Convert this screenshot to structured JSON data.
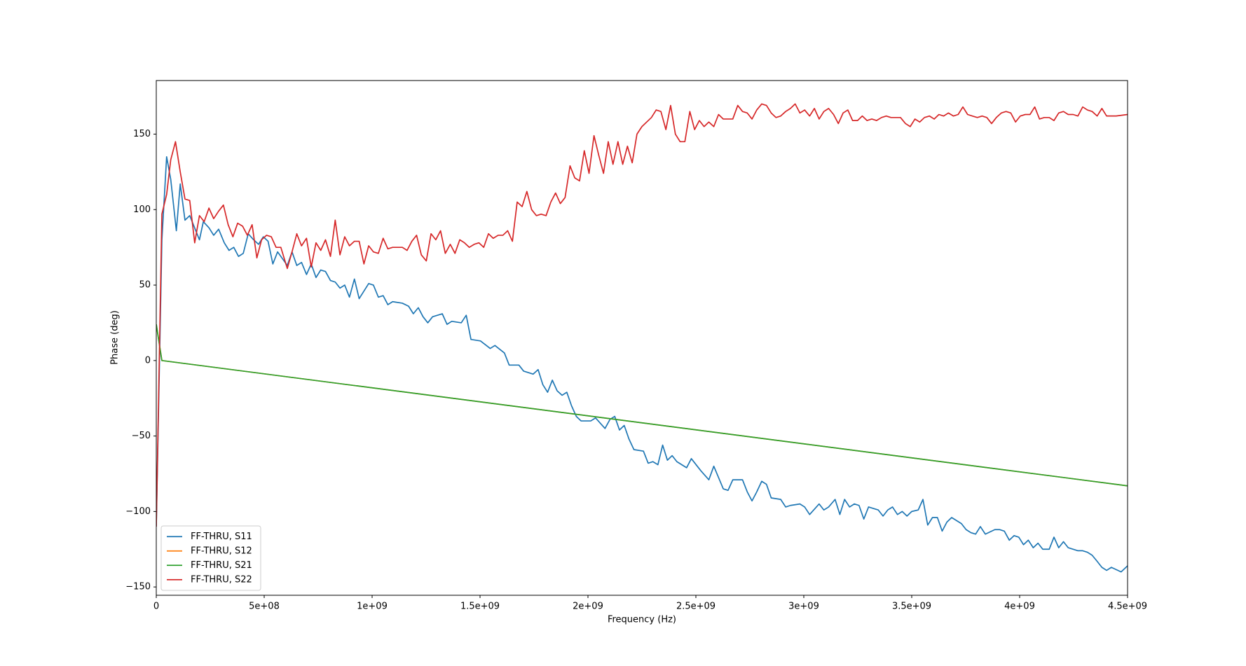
{
  "chart_data": {
    "type": "line",
    "xlabel": "Frequency (Hz)",
    "ylabel": "Phase (deg)",
    "xlim": [
      0,
      4500000000.0
    ],
    "ylim": [
      -155.5,
      185.5
    ],
    "xticks": [
      0,
      {
        "value": 500000000.0,
        "label": "5e+08"
      },
      {
        "value": 1000000000.0,
        "label": "1e+09"
      },
      {
        "value": 1500000000.0,
        "label": "1.5e+09"
      },
      {
        "value": 2000000000.0,
        "label": "2e+09"
      },
      {
        "value": 2500000000.0,
        "label": "2.5e+09"
      },
      {
        "value": 3000000000.0,
        "label": "3e+09"
      },
      {
        "value": 3500000000.0,
        "label": "3.5e+09"
      },
      {
        "value": 4000000000.0,
        "label": "4e+09"
      },
      {
        "value": 4500000000.0,
        "label": "4.5e+09"
      }
    ],
    "yticks": [
      {
        "value": -150,
        "label": "−150"
      },
      {
        "value": -100,
        "label": "−100"
      },
      {
        "value": -50,
        "label": "−50"
      },
      0,
      50,
      100,
      150
    ],
    "legend": "lower left",
    "series": [
      {
        "name": "FF-THRU, S11",
        "color": "#1f77b4",
        "x": [
          0,
          26000000.0,
          48000000.0,
          67000000.0,
          93000000.0,
          111000000.0,
          133000000.0,
          155000000.0,
          200000000.0,
          218000000.0,
          244000000.0,
          266000000.0,
          289000000.0,
          315000000.0,
          337000000.0,
          359000000.0,
          381000000.0,
          403000000.0,
          426000000.0,
          451000000.0,
          474000000.0,
          496000000.0,
          518000000.0,
          540000000.0,
          562000000.0,
          607000000.0,
          629000000.0,
          651000000.0,
          673000000.0,
          696000000.0,
          718000000.0,
          740000000.0,
          762000000.0,
          784000000.0,
          807000000.0,
          829000000.0,
          851000000.0,
          873000000.0,
          895000000.0,
          918000000.0,
          940000000.0,
          984000000.0,
          1006000000.0,
          1029000000.0,
          1051000000.0,
          1073000000.0,
          1095000000.0,
          1140000000.0,
          1169000000.0,
          1191000000.0,
          1214000000.0,
          1236000000.0,
          1258000000.0,
          1280000000.0,
          1325000000.0,
          1347000000.0,
          1369000000.0,
          1413000000.0,
          1436000000.0,
          1458000000.0,
          1502000000.0,
          1547000000.0,
          1569000000.0,
          1613000000.0,
          1635000000.0,
          1680000000.0,
          1702000000.0,
          1746000000.0,
          1769000000.0,
          1791000000.0,
          1813000000.0,
          1835000000.0,
          1857000000.0,
          1880000000.0,
          1902000000.0,
          1924000000.0,
          1946000000.0,
          1968000000.0,
          2013000000.0,
          2035000000.0,
          2079000000.0,
          2102000000.0,
          2124000000.0,
          2146000000.0,
          2168000000.0,
          2190000000.0,
          2213000000.0,
          2257000000.0,
          2279000000.0,
          2301000000.0,
          2324000000.0,
          2346000000.0,
          2368000000.0,
          2390000000.0,
          2412000000.0,
          2457000000.0,
          2479000000.0,
          2523000000.0,
          2560000000.0,
          2583000000.0,
          2627000000.0,
          2649000000.0,
          2671000000.0,
          2716000000.0,
          2738000000.0,
          2760000000.0,
          2782000000.0,
          2805000000.0,
          2827000000.0,
          2849000000.0,
          2893000000.0,
          2916000000.0,
          2938000000.0,
          2982000000.0,
          3004000000.0,
          3027000000.0,
          3071000000.0,
          3093000000.0,
          3115000000.0,
          3145000000.0,
          3167000000.0,
          3189000000.0,
          3212000000.0,
          3234000000.0,
          3256000000.0,
          3278000000.0,
          3300000000.0,
          3345000000.0,
          3367000000.0,
          3389000000.0,
          3411000000.0,
          3434000000.0,
          3456000000.0,
          3478000000.0,
          3500000000.0,
          3530000000.0,
          3552000000.0,
          3574000000.0,
          3596000000.0,
          3619000000.0,
          3641000000.0,
          3663000000.0,
          3685000000.0,
          3730000000.0,
          3752000000.0,
          3774000000.0,
          3796000000.0,
          3818000000.0,
          3841000000.0,
          3885000000.0,
          3907000000.0,
          3929000000.0,
          3952000000.0,
          3974000000.0,
          3996000000.0,
          4018000000.0,
          4040000000.0,
          4063000000.0,
          4085000000.0,
          4107000000.0,
          4137000000.0,
          4159000000.0,
          4181000000.0,
          4203000000.0,
          4225000000.0,
          4270000000.0,
          4292000000.0,
          4314000000.0,
          4336000000.0,
          4359000000.0,
          4381000000.0,
          4403000000.0,
          4425000000.0,
          4470000000.0,
          4500000000.0
        ],
        "values": [
          -110,
          80,
          135,
          120,
          86,
          117,
          93,
          96,
          80,
          92,
          88,
          83,
          87,
          78,
          73,
          75,
          69,
          71,
          84,
          80,
          77,
          82,
          79,
          64,
          72,
          63,
          72,
          63,
          65,
          57,
          64,
          55,
          60,
          59,
          53,
          52,
          48,
          50,
          42,
          54,
          41,
          51,
          50,
          42,
          43,
          37,
          39,
          38,
          36,
          31,
          35,
          29,
          25,
          29,
          31,
          24,
          26,
          25,
          30,
          14,
          13,
          8,
          10,
          5,
          -3,
          -3,
          -7,
          -9,
          -6,
          -16,
          -21,
          -13,
          -20,
          -23,
          -21,
          -30,
          -37,
          -40,
          -40,
          -38,
          -45,
          -39,
          -37,
          -46,
          -43,
          -52,
          -59,
          -60,
          -68,
          -67,
          -69,
          -56,
          -66,
          -63,
          -67,
          -71,
          -65,
          -73,
          -79,
          -70,
          -85,
          -86,
          -79,
          -79,
          -87,
          -93,
          -87,
          -80,
          -82,
          -91,
          -92,
          -97,
          -96,
          -95,
          -97,
          -102,
          -95,
          -99,
          -97,
          -92,
          -102,
          -92,
          -97,
          -95,
          -96,
          -105,
          -97,
          -99,
          -103,
          -99,
          -97,
          -102,
          -100,
          -103,
          -100,
          -99,
          -92,
          -109,
          -104,
          -104,
          -113,
          -107,
          -104,
          -108,
          -112,
          -114,
          -115,
          -110,
          -115,
          -112,
          -112,
          -113,
          -119,
          -116,
          -117,
          -122,
          -119,
          -124,
          -121,
          -125,
          -125,
          -117,
          -124,
          -120,
          -124,
          -126,
          -126,
          -127,
          -129,
          -133,
          -137,
          -139,
          -137,
          -140,
          -136
        ]
      },
      {
        "name": "FF-THRU, S12",
        "color": "#ff7f0e",
        "x": [
          0,
          26000000.0,
          4500000000.0
        ],
        "values": [
          24,
          0,
          -83
        ]
      },
      {
        "name": "FF-THRU, S21",
        "color": "#2ca02c",
        "x": [
          0,
          26000000.0,
          4500000000.0
        ],
        "values": [
          24,
          0,
          -83
        ]
      },
      {
        "name": "FF-THRU, S22",
        "color": "#d62728",
        "x": [
          0,
          26000000.0,
          48000000.0,
          67000000.0,
          89000000.0,
          111000000.0,
          133000000.0,
          155000000.0,
          178000000.0,
          200000000.0,
          222000000.0,
          244000000.0,
          266000000.0,
          289000000.0,
          311000000.0,
          333000000.0,
          355000000.0,
          377000000.0,
          400000000.0,
          422000000.0,
          444000000.0,
          466000000.0,
          488000000.0,
          511000000.0,
          533000000.0,
          555000000.0,
          577000000.0,
          607000000.0,
          629000000.0,
          651000000.0,
          673000000.0,
          696000000.0,
          718000000.0,
          740000000.0,
          762000000.0,
          784000000.0,
          807000000.0,
          829000000.0,
          851000000.0,
          873000000.0,
          895000000.0,
          918000000.0,
          940000000.0,
          962000000.0,
          984000000.0,
          1006000000.0,
          1029000000.0,
          1051000000.0,
          1073000000.0,
          1095000000.0,
          1140000000.0,
          1162000000.0,
          1184000000.0,
          1206000000.0,
          1228000000.0,
          1251000000.0,
          1273000000.0,
          1295000000.0,
          1317000000.0,
          1339000000.0,
          1362000000.0,
          1384000000.0,
          1406000000.0,
          1428000000.0,
          1450000000.0,
          1473000000.0,
          1495000000.0,
          1517000000.0,
          1539000000.0,
          1561000000.0,
          1584000000.0,
          1606000000.0,
          1628000000.0,
          1650000000.0,
          1672000000.0,
          1695000000.0,
          1717000000.0,
          1739000000.0,
          1761000000.0,
          1783000000.0,
          1806000000.0,
          1828000000.0,
          1850000000.0,
          1872000000.0,
          1894000000.0,
          1917000000.0,
          1939000000.0,
          1961000000.0,
          1983000000.0,
          2005000000.0,
          2028000000.0,
          2050000000.0,
          2072000000.0,
          2094000000.0,
          2116000000.0,
          2139000000.0,
          2161000000.0,
          2183000000.0,
          2205000000.0,
          2227000000.0,
          2250000000.0,
          2294000000.0,
          2316000000.0,
          2338000000.0,
          2361000000.0,
          2383000000.0,
          2405000000.0,
          2427000000.0,
          2449000000.0,
          2472000000.0,
          2494000000.0,
          2516000000.0,
          2538000000.0,
          2560000000.0,
          2583000000.0,
          2605000000.0,
          2627000000.0,
          2671000000.0,
          2694000000.0,
          2716000000.0,
          2738000000.0,
          2760000000.0,
          2782000000.0,
          2805000000.0,
          2827000000.0,
          2849000000.0,
          2871000000.0,
          2893000000.0,
          2916000000.0,
          2938000000.0,
          2960000000.0,
          2982000000.0,
          3004000000.0,
          3027000000.0,
          3049000000.0,
          3071000000.0,
          3093000000.0,
          3115000000.0,
          3138000000.0,
          3160000000.0,
          3182000000.0,
          3204000000.0,
          3226000000.0,
          3249000000.0,
          3271000000.0,
          3293000000.0,
          3315000000.0,
          3337000000.0,
          3360000000.0,
          3382000000.0,
          3404000000.0,
          3448000000.0,
          3471000000.0,
          3493000000.0,
          3515000000.0,
          3537000000.0,
          3559000000.0,
          3582000000.0,
          3604000000.0,
          3626000000.0,
          3648000000.0,
          3670000000.0,
          3693000000.0,
          3715000000.0,
          3737000000.0,
          3759000000.0,
          3781000000.0,
          3804000000.0,
          3826000000.0,
          3848000000.0,
          3870000000.0,
          3892000000.0,
          3915000000.0,
          3937000000.0,
          3959000000.0,
          3981000000.0,
          4003000000.0,
          4026000000.0,
          4048000000.0,
          4070000000.0,
          4092000000.0,
          4114000000.0,
          4137000000.0,
          4159000000.0,
          4181000000.0,
          4203000000.0,
          4225000000.0,
          4248000000.0,
          4270000000.0,
          4292000000.0,
          4314000000.0,
          4336000000.0,
          4359000000.0,
          4381000000.0,
          4403000000.0,
          4447000000.0,
          4500000000.0
        ],
        "values": [
          -110,
          97,
          110,
          133,
          145,
          125,
          107,
          106,
          78,
          96,
          92,
          101,
          94,
          99,
          103,
          90,
          82,
          91,
          89,
          83,
          90,
          68,
          80,
          83,
          82,
          75,
          75,
          61,
          72,
          84,
          76,
          81,
          62,
          78,
          73,
          80,
          69,
          93,
          70,
          82,
          76,
          79,
          79,
          64,
          76,
          72,
          71,
          81,
          74,
          75,
          75,
          73,
          79,
          83,
          70,
          66,
          84,
          80,
          86,
          71,
          77,
          71,
          80,
          78,
          75,
          77,
          78,
          75,
          84,
          81,
          83,
          83,
          86,
          79,
          105,
          102,
          112,
          100,
          96,
          97,
          96,
          105,
          111,
          104,
          108,
          129,
          121,
          119,
          139,
          124,
          149,
          136,
          124,
          145,
          130,
          145,
          130,
          142,
          131,
          150,
          155,
          161,
          166,
          165,
          153,
          169,
          150,
          145,
          145,
          165,
          153,
          159,
          155,
          158,
          155,
          163,
          160,
          160,
          169,
          165,
          164,
          160,
          166,
          170,
          169,
          164,
          161,
          162,
          165,
          167,
          170,
          164,
          166,
          162,
          167,
          160,
          165,
          167,
          163,
          157,
          164,
          166,
          159,
          159,
          162,
          159,
          160,
          159,
          161,
          162,
          161,
          161,
          157,
          155,
          160,
          158,
          161,
          162,
          160,
          163,
          162,
          164,
          162,
          163,
          168,
          163,
          162,
          161,
          162,
          161,
          157,
          161,
          164,
          165,
          164,
          158,
          162,
          163,
          163,
          168,
          160,
          161,
          161,
          159,
          164,
          165,
          163,
          163,
          162,
          168,
          166,
          165,
          162,
          167,
          162,
          162,
          163
        ]
      }
    ]
  }
}
